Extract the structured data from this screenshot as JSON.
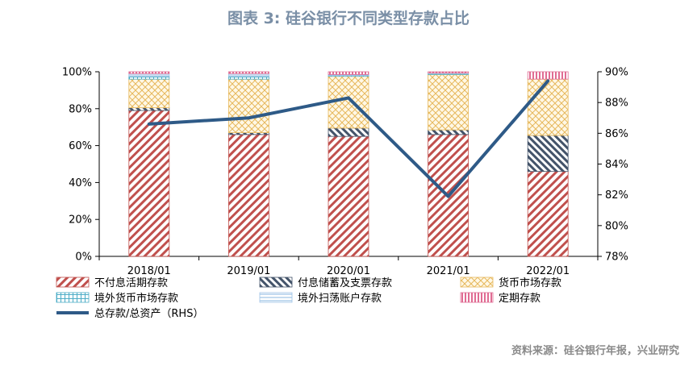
{
  "figure_title": "图表 3:   硅谷银行不同类型存款占比",
  "source_note": "资料来源：硅谷银行年报，兴业研究",
  "colors": {
    "title": "#7a8fa6",
    "nonInterest": "#c0504d",
    "interest": "#44546a",
    "moneyMarket": "#e6b85c",
    "foreignMM": "#4bacc6",
    "sweep": "#9dc3e6",
    "time": "#e06c93",
    "line": "#2e5a87"
  },
  "chart_data": {
    "type": "stacked-bar+line",
    "categories": [
      "2018/01",
      "2019/01",
      "2020/01",
      "2021/01",
      "2022/01"
    ],
    "series": [
      {
        "name": "不付息活期存款",
        "key": "nonInterest",
        "values": [
          79,
          66,
          65,
          66,
          46
        ]
      },
      {
        "name": "付息储蓄及支票存款",
        "key": "interest",
        "values": [
          1.5,
          1,
          4.5,
          2.5,
          19.5
        ]
      },
      {
        "name": "货币市场存款",
        "key": "moneyMarket",
        "values": [
          15.5,
          29,
          28,
          30,
          30.5
        ]
      },
      {
        "name": "境外货币市场存款",
        "key": "foreignMM",
        "values": [
          1.5,
          1.5,
          0.5,
          0.5,
          0
        ]
      },
      {
        "name": "境外扫荡账户存款",
        "key": "sweep",
        "values": [
          1.5,
          1.5,
          0.5,
          0.3,
          0
        ]
      },
      {
        "name": "定期存款",
        "key": "time",
        "values": [
          1,
          1,
          1.5,
          0.7,
          4
        ]
      }
    ],
    "line_series": {
      "name": "总存款/总资产（RHS）",
      "values": [
        86.6,
        87.0,
        88.3,
        81.9,
        89.4
      ]
    },
    "left_axis": {
      "ylim": [
        0,
        100
      ],
      "ticks": [
        0,
        20,
        40,
        60,
        80,
        100
      ],
      "tick_labels": [
        "0%",
        "20%",
        "40%",
        "60%",
        "80%",
        "100%"
      ]
    },
    "right_axis": {
      "ylim": [
        78,
        90
      ],
      "ticks": [
        78,
        80,
        82,
        84,
        86,
        88,
        90
      ],
      "tick_labels": [
        "78%",
        "80%",
        "82%",
        "84%",
        "86%",
        "88%",
        "90%"
      ]
    },
    "legend": {
      "placement": "bottom"
    }
  }
}
